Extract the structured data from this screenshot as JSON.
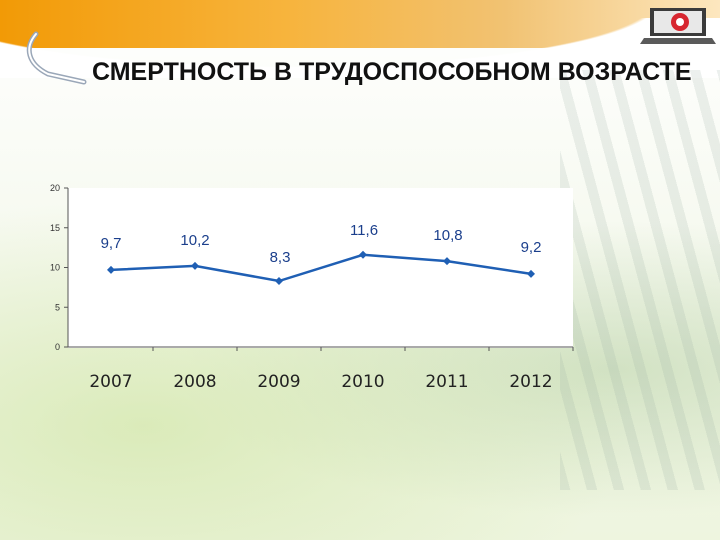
{
  "slide": {
    "title": "СМЕРТНОСТЬ В ТРУДОСПОСОБНОМ ВОЗРАСТЕ"
  },
  "colors": {
    "series": "#1f5fb4",
    "label": "#1b3f8c",
    "band": "#f29a06"
  },
  "chart_data": {
    "type": "line",
    "categories": [
      "2007",
      "2008",
      "2009",
      "2010",
      "2011",
      "2012"
    ],
    "series": [
      {
        "values": [
          9.7,
          10.2,
          8.3,
          11.6,
          10.8,
          9.2
        ]
      }
    ],
    "data_labels": [
      "9,7",
      "10,2",
      "8,3",
      "11,6",
      "10,8",
      "9,2"
    ],
    "y_ticks": [
      "0",
      "5",
      "10",
      "15",
      "20"
    ],
    "ylim": [
      0,
      20
    ],
    "grid": false,
    "legend": "none",
    "title": "",
    "xlabel": "",
    "ylabel": ""
  }
}
